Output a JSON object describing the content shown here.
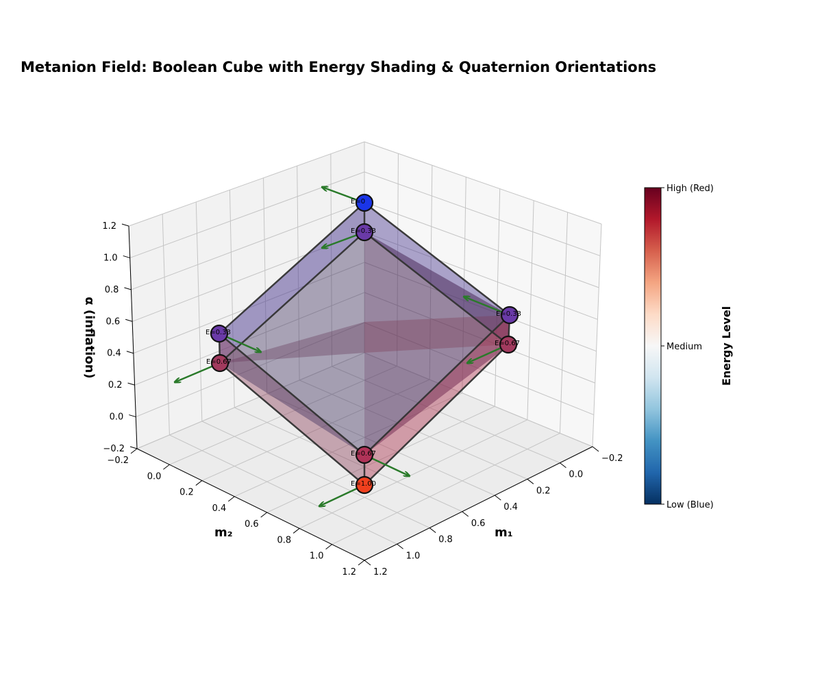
{
  "chart_data": {
    "type": "scatter",
    "projection": "3d",
    "title": "Metanion Field: Boolean Cube with Energy Shading & Quaternion Orientations",
    "xlabel": "m₁",
    "ylabel": "m₂",
    "zlabel": "α (inflation)",
    "xlim": [
      -0.2,
      1.2
    ],
    "ylim": [
      -0.2,
      1.2
    ],
    "zlim": [
      -0.2,
      1.2
    ],
    "x_ticks": [
      "−0.2",
      "0.0",
      "0.2",
      "0.4",
      "0.6",
      "0.8",
      "1.0",
      "1.2"
    ],
    "y_ticks": [
      "−0.2",
      "0.0",
      "0.2",
      "0.4",
      "0.6",
      "0.8",
      "1.0",
      "1.2"
    ],
    "z_ticks": [
      "−0.2",
      "0.0",
      "0.2",
      "0.4",
      "0.6",
      "0.8",
      "1.0",
      "1.2"
    ],
    "grid": true,
    "vertices": [
      {
        "m1": 0,
        "m2": 0,
        "alpha": 0,
        "label": "E=0",
        "color": "#1a35e8"
      },
      {
        "m1": 0,
        "m2": 0,
        "alpha": 1,
        "label": "E=0.33",
        "color": "#6a3aa8"
      },
      {
        "m1": 1,
        "m2": 0,
        "alpha": 0,
        "label": "E=0.33",
        "color": "#6a3aa8"
      },
      {
        "m1": 1,
        "m2": 0,
        "alpha": 1,
        "label": "E=0.67",
        "color": "#a23a5e"
      },
      {
        "m1": 0,
        "m2": 1,
        "alpha": 0,
        "label": "E=0.33",
        "color": "#6a3aa8"
      },
      {
        "m1": 0,
        "m2": 1,
        "alpha": 1,
        "label": "E=0.67",
        "color": "#a23a5e"
      },
      {
        "m1": 1,
        "m2": 1,
        "alpha": 0,
        "label": "E=0.67",
        "color": "#b03358"
      },
      {
        "m1": 1,
        "m2": 1,
        "alpha": 1,
        "label": "E=1.00",
        "color": "#f0401e"
      }
    ],
    "colorbar": {
      "title": "Energy Level",
      "tick_labels": [
        "High (Red)",
        "Medium",
        "Low (Blue)"
      ],
      "colors": [
        "#67001f",
        "#b2182b",
        "#d6604d",
        "#f4a582",
        "#fddbc7",
        "#f7f7f7",
        "#d1e5f0",
        "#92c5de",
        "#4393c3",
        "#2166ac",
        "#053061"
      ]
    },
    "edge_color": "#333333",
    "arrow_color": "#2a7a2a"
  }
}
